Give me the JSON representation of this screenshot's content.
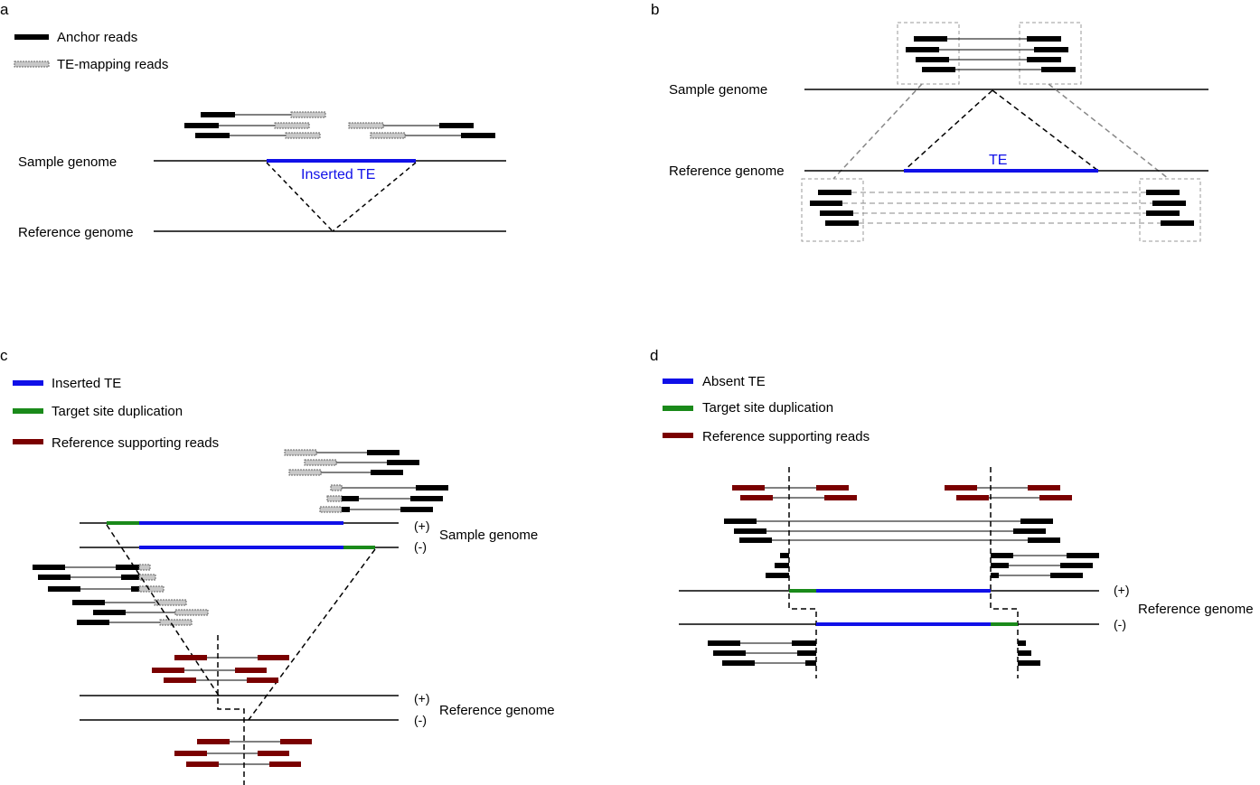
{
  "colors": {
    "anchor": "#000000",
    "te_mapping": "#c8c8c8",
    "te": "#1010e8",
    "tsd": "#1a8a1a",
    "ref_support": "#7a0000",
    "box": "#999999"
  },
  "panels": {
    "a": {
      "letter": "a",
      "legend": [
        {
          "label": "Anchor reads",
          "icon": "solid-black-bar"
        },
        {
          "label": "TE-mapping reads",
          "icon": "hatched-gray-bar"
        }
      ],
      "sample_label": "Sample genome",
      "reference_label": "Reference genome",
      "te_label": "Inserted TE"
    },
    "b": {
      "letter": "b",
      "sample_label": "Sample genome",
      "reference_label": "Reference genome",
      "te_label": "TE"
    },
    "c": {
      "letter": "c",
      "legend": [
        {
          "label": "Inserted TE",
          "icon": "blue-bar"
        },
        {
          "label": "Target site duplication",
          "icon": "green-bar"
        },
        {
          "label": "Reference supporting reads",
          "icon": "red-bar"
        }
      ],
      "plus": "(+)",
      "minus": "(-)",
      "sample_label": "Sample genome",
      "reference_label": "Reference genome",
      "ref_plus": "(+)",
      "ref_minus": "(-)"
    },
    "d": {
      "letter": "d",
      "legend": [
        {
          "label": "Absent TE",
          "icon": "blue-bar"
        },
        {
          "label": "Target site duplication",
          "icon": "green-bar"
        },
        {
          "label": "Reference supporting reads",
          "icon": "red-bar"
        }
      ],
      "plus": "(+)",
      "minus": "(-)",
      "reference_label": "Reference genome"
    }
  }
}
